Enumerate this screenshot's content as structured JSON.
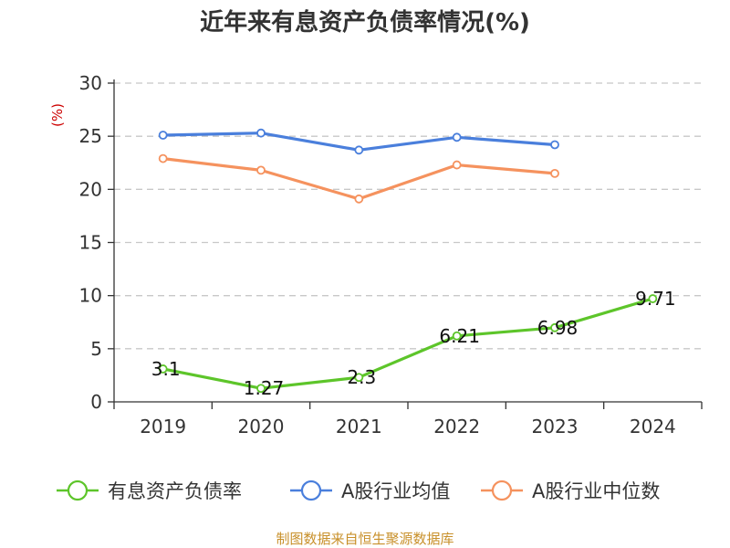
{
  "chart_data": {
    "type": "line",
    "title": "近年来有息资产负债率情况(%)",
    "unit_label": "(%)",
    "categories": [
      "2019",
      "2020",
      "2021",
      "2022",
      "2023",
      "2024"
    ],
    "yticks": [
      "0",
      "5",
      "10",
      "15",
      "20",
      "25",
      "30"
    ],
    "ylim": [
      0,
      30
    ],
    "grid": true,
    "legend_position": "bottom",
    "series": [
      {
        "name": "有息资产负债率",
        "color": "#5dc52a",
        "values": [
          3.1,
          1.27,
          2.3,
          6.21,
          6.98,
          9.71
        ],
        "labels": [
          "3.1",
          "1.27",
          "2.3",
          "6.21",
          "6.98",
          "9.71"
        ]
      },
      {
        "name": "A股行业均值",
        "color": "#4a7fdc",
        "values": [
          25.1,
          25.3,
          23.7,
          24.9,
          24.2,
          null
        ]
      },
      {
        "name": "A股行业中位数",
        "color": "#f5925e",
        "values": [
          22.9,
          21.8,
          19.1,
          22.3,
          21.5,
          null
        ]
      }
    ]
  },
  "footer": {
    "source": "制图数据来自恒生聚源数据库"
  }
}
